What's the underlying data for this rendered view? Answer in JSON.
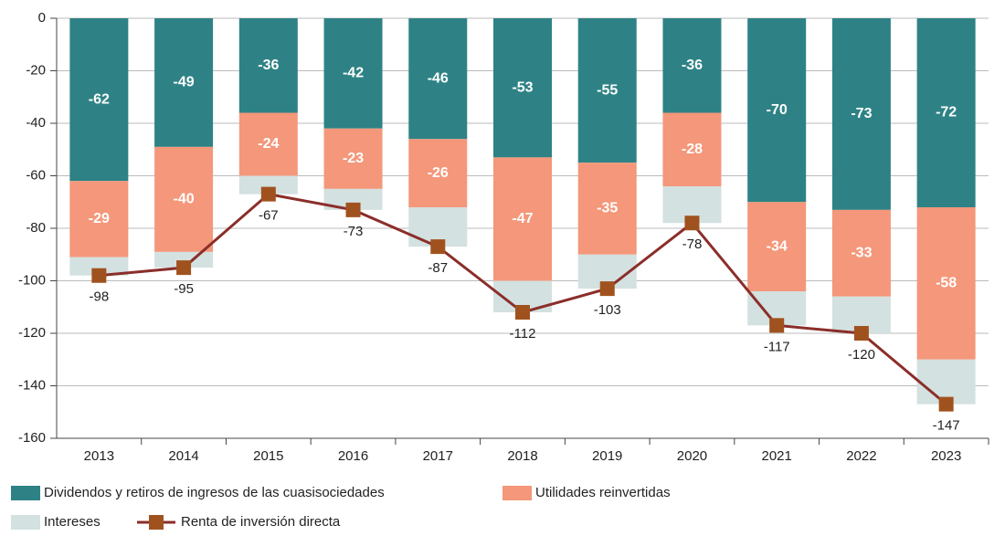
{
  "chart_data": {
    "type": "bar",
    "stacked": true,
    "categories": [
      "2013",
      "2014",
      "2015",
      "2016",
      "2017",
      "2018",
      "2019",
      "2020",
      "2021",
      "2022",
      "2023"
    ],
    "series": [
      {
        "name": "Dividendos y retiros de ingresos de las cuasisociedades",
        "color": "#2e8285",
        "values": [
          -62,
          -49,
          -36,
          -42,
          -46,
          -53,
          -55,
          -36,
          -70,
          -73,
          -72
        ]
      },
      {
        "name": "Utilidades reinvertidas",
        "color": "#f4977a",
        "values": [
          -29,
          -40,
          -24,
          -23,
          -26,
          -47,
          -35,
          -28,
          -34,
          -33,
          -58
        ]
      },
      {
        "name": "Intereses",
        "color": "#d3e1e0",
        "values": [
          -7,
          -6,
          -7,
          -8,
          -15,
          -12,
          -13,
          -14,
          -13,
          -14,
          -17
        ]
      },
      {
        "name": "Renta de inversión directa",
        "type": "line",
        "color": "#8b2e2a",
        "marker_color": "#a0521e",
        "values": [
          -98,
          -95,
          -67,
          -73,
          -87,
          -112,
          -103,
          -78,
          -117,
          -120,
          -147
        ]
      }
    ],
    "ylim": [
      -160,
      0
    ],
    "yticks": [
      0,
      -20,
      -40,
      -60,
      -80,
      -100,
      -120,
      -140,
      -160
    ],
    "grid": true
  }
}
